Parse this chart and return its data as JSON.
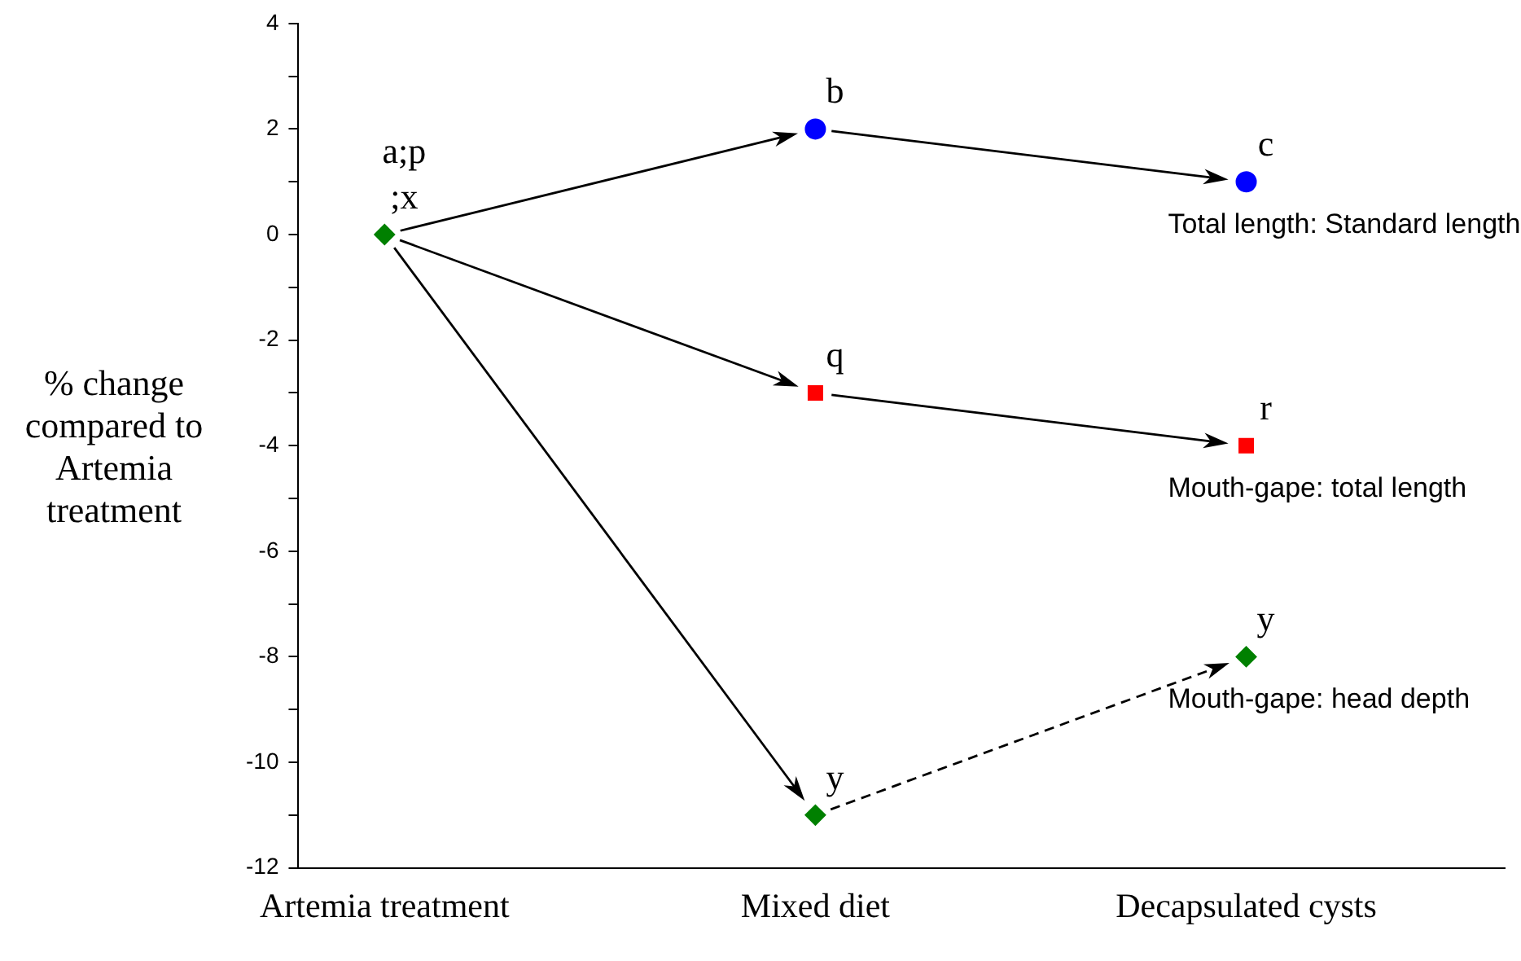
{
  "chart_data": {
    "type": "scatter",
    "ylabel": "% change compared to Artemia treatment",
    "categories": [
      "Artemia treatment",
      "Mixed diet",
      "Decapsulated cysts"
    ],
    "ylim": [
      -12,
      4
    ],
    "yticks": [
      -12,
      {
        "value": -11,
        "label": null
      },
      -10,
      {
        "value": -9,
        "label": null
      },
      -8,
      {
        "value": -7,
        "label": null
      },
      -6,
      {
        "value": -5,
        "label": null
      },
      -4,
      {
        "value": -3,
        "label": null
      },
      -2,
      {
        "value": -1,
        "label": null
      },
      0,
      {
        "value": 1,
        "label": null
      },
      2,
      {
        "value": 3,
        "label": null
      },
      4
    ],
    "series": [
      {
        "name": "Total length: Standard length",
        "color": "#0000ff",
        "marker": "circle",
        "line_style": "solid",
        "values": [
          null,
          2,
          1
        ]
      },
      {
        "name": "Mouth-gape: total length",
        "color": "#ff0000",
        "marker": "square",
        "line_style": "solid",
        "values": [
          null,
          -3,
          -4
        ]
      },
      {
        "color": "#008000",
        "marker": "diamond",
        "line_style": "solid",
        "values": [
          0,
          -11,
          null
        ]
      },
      {
        "name": "Mouth-gape: head depth",
        "color": "#008000",
        "marker": "diamond",
        "line_style": "dashed",
        "values": [
          null,
          null,
          -8
        ]
      }
    ],
    "annotations": [
      {
        "text": "a;p\n;x",
        "x": "Artemia treatment",
        "y": 0
      },
      {
        "text": "b",
        "x": "Mixed diet",
        "y": 2
      },
      {
        "text": "c",
        "x": "Decapsulated cysts",
        "y": 1
      },
      {
        "text": "q",
        "x": "Mixed diet",
        "y": -3
      },
      {
        "text": "r",
        "x": "Decapsulated cysts",
        "y": -4
      },
      {
        "text": "y",
        "x": "Mixed diet",
        "y": -11
      },
      {
        "text": "y",
        "x": "Decapsulated cysts",
        "y": -8
      }
    ],
    "grid": false
  }
}
